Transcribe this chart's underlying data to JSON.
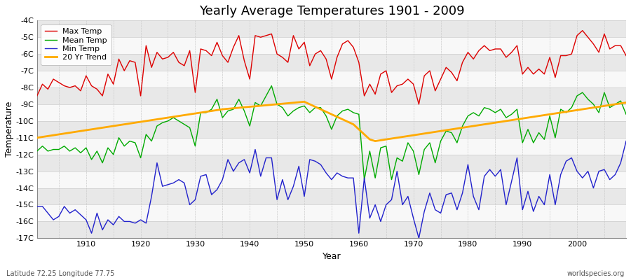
{
  "title": "Yearly Average Temperatures 1901 - 2009",
  "xlabel": "Year",
  "ylabel": "Temperature",
  "bottom_left": "Latitude 72.25 Longitude 77.75",
  "bottom_right": "worldspecies.org",
  "ylim": [
    -17,
    -4
  ],
  "ytick_vals": [
    -17,
    -16,
    -15,
    -14,
    -13,
    -12,
    -11,
    -10,
    -9,
    -8,
    -7,
    -6,
    -5,
    -4
  ],
  "ytick_labels": [
    "-17C",
    "-16C",
    "-15C",
    "-14C",
    "-13C",
    "-12C",
    "-11C",
    "-10C",
    "-9C",
    "-8C",
    "-7C",
    "-6C",
    "-5C",
    "-4C"
  ],
  "xlim": [
    1901,
    2009
  ],
  "bg_color": "#ffffff",
  "plot_bg_color": "#f0f0f0",
  "band_color1": "#e8e8e8",
  "band_color2": "#f8f8f8",
  "grid_color": "#cccccc",
  "legend_labels": [
    "Max Temp",
    "Mean Temp",
    "Min Temp",
    "20 Yr Trend"
  ],
  "legend_colors": [
    "#dd0000",
    "#00aa00",
    "#2222cc",
    "#ffaa00"
  ],
  "years": [
    1901,
    1902,
    1903,
    1904,
    1905,
    1906,
    1907,
    1908,
    1909,
    1910,
    1911,
    1912,
    1913,
    1914,
    1915,
    1916,
    1917,
    1918,
    1919,
    1920,
    1921,
    1922,
    1923,
    1924,
    1925,
    1926,
    1927,
    1928,
    1929,
    1930,
    1931,
    1932,
    1933,
    1934,
    1935,
    1936,
    1937,
    1938,
    1939,
    1940,
    1941,
    1942,
    1943,
    1944,
    1945,
    1946,
    1947,
    1948,
    1949,
    1950,
    1951,
    1952,
    1953,
    1954,
    1955,
    1956,
    1957,
    1958,
    1959,
    1960,
    1961,
    1962,
    1963,
    1964,
    1965,
    1966,
    1967,
    1968,
    1969,
    1970,
    1971,
    1972,
    1973,
    1974,
    1975,
    1976,
    1977,
    1978,
    1979,
    1980,
    1981,
    1982,
    1983,
    1984,
    1985,
    1986,
    1987,
    1988,
    1989,
    1990,
    1991,
    1992,
    1993,
    1994,
    1995,
    1996,
    1997,
    1998,
    1999,
    2000,
    2001,
    2002,
    2003,
    2004,
    2005,
    2006,
    2007,
    2008,
    2009
  ],
  "max_temp": [
    -8.5,
    -7.8,
    -8.1,
    -7.5,
    -7.7,
    -7.9,
    -8.0,
    -7.9,
    -8.2,
    -7.3,
    -7.9,
    -8.1,
    -8.5,
    -7.2,
    -7.8,
    -6.3,
    -7.0,
    -6.4,
    -6.5,
    -8.5,
    -5.5,
    -6.8,
    -5.9,
    -6.3,
    -6.2,
    -5.9,
    -6.5,
    -6.7,
    -5.8,
    -8.3,
    -5.7,
    -5.8,
    -6.1,
    -5.3,
    -6.1,
    -6.5,
    -5.6,
    -4.9,
    -6.4,
    -7.5,
    -4.9,
    -5.0,
    -4.9,
    -4.8,
    -6.0,
    -6.2,
    -6.5,
    -4.9,
    -5.7,
    -5.3,
    -6.7,
    -6.0,
    -5.8,
    -6.3,
    -7.5,
    -6.2,
    -5.4,
    -5.2,
    -5.6,
    -6.5,
    -8.5,
    -7.8,
    -8.4,
    -7.2,
    -7.0,
    -8.3,
    -7.9,
    -7.8,
    -7.5,
    -7.8,
    -9.0,
    -7.3,
    -7.0,
    -8.2,
    -7.5,
    -6.8,
    -7.1,
    -7.6,
    -6.5,
    -5.9,
    -6.3,
    -5.8,
    -5.5,
    -5.8,
    -5.7,
    -5.7,
    -6.2,
    -5.9,
    -5.5,
    -7.2,
    -6.8,
    -7.2,
    -6.9,
    -7.2,
    -6.2,
    -7.4,
    -6.1,
    -6.1,
    -6.0,
    -4.9,
    -4.6,
    -5.0,
    -5.4,
    -5.9,
    -4.8,
    -5.7,
    -5.5,
    -5.5,
    -6.1
  ],
  "mean_temp": [
    -11.8,
    -11.5,
    -11.8,
    -11.7,
    -11.7,
    -11.5,
    -11.8,
    -11.6,
    -11.9,
    -11.6,
    -12.3,
    -11.8,
    -12.5,
    -11.6,
    -12.0,
    -11.0,
    -11.5,
    -11.2,
    -11.3,
    -12.2,
    -10.8,
    -11.2,
    -10.3,
    -10.1,
    -10.0,
    -9.8,
    -10.0,
    -10.2,
    -10.4,
    -11.5,
    -9.5,
    -9.5,
    -9.3,
    -8.7,
    -9.8,
    -9.4,
    -9.3,
    -8.7,
    -9.4,
    -10.3,
    -8.9,
    -9.1,
    -8.5,
    -7.9,
    -9.0,
    -9.2,
    -9.7,
    -9.4,
    -9.2,
    -9.1,
    -9.5,
    -9.2,
    -9.2,
    -9.7,
    -10.5,
    -9.7,
    -9.4,
    -9.3,
    -9.5,
    -9.6,
    -13.5,
    -11.8,
    -13.4,
    -11.6,
    -11.5,
    -13.5,
    -12.2,
    -12.4,
    -11.3,
    -11.8,
    -13.2,
    -11.7,
    -11.3,
    -12.5,
    -11.2,
    -10.6,
    -10.7,
    -11.3,
    -10.3,
    -9.7,
    -9.5,
    -9.7,
    -9.2,
    -9.3,
    -9.5,
    -9.3,
    -9.8,
    -9.6,
    -9.3,
    -11.3,
    -10.5,
    -11.3,
    -10.7,
    -11.1,
    -9.7,
    -11.0,
    -9.3,
    -9.5,
    -9.2,
    -8.5,
    -8.3,
    -8.7,
    -9.0,
    -9.5,
    -8.3,
    -9.2,
    -9.0,
    -8.8,
    -9.6
  ],
  "min_temp": [
    -15.1,
    -15.1,
    -15.5,
    -15.9,
    -15.7,
    -15.1,
    -15.5,
    -15.3,
    -15.6,
    -15.9,
    -16.7,
    -15.5,
    -16.5,
    -15.9,
    -16.2,
    -15.7,
    -16.0,
    -16.0,
    -16.1,
    -15.9,
    -16.1,
    -14.5,
    -12.5,
    -13.9,
    -13.8,
    -13.7,
    -13.5,
    -13.7,
    -15.0,
    -14.7,
    -13.3,
    -13.2,
    -14.4,
    -14.1,
    -13.5,
    -12.3,
    -13.0,
    -12.5,
    -12.3,
    -13.1,
    -11.7,
    -13.3,
    -12.2,
    -12.2,
    -14.7,
    -13.5,
    -14.7,
    -13.9,
    -12.7,
    -14.5,
    -12.3,
    -12.4,
    -12.6,
    -13.1,
    -13.5,
    -13.1,
    -13.3,
    -13.4,
    -13.4,
    -16.7,
    -13.4,
    -15.8,
    -15.0,
    -16.0,
    -15.0,
    -14.7,
    -13.0,
    -15.0,
    -14.5,
    -15.8,
    -17.0,
    -15.4,
    -14.3,
    -15.3,
    -15.5,
    -14.4,
    -14.3,
    -15.3,
    -14.3,
    -12.6,
    -14.5,
    -15.3,
    -13.3,
    -12.9,
    -13.3,
    -12.9,
    -15.0,
    -13.6,
    -12.2,
    -15.3,
    -14.2,
    -15.4,
    -14.5,
    -15.0,
    -13.2,
    -15.0,
    -13.2,
    -12.4,
    -12.2,
    -13.0,
    -13.4,
    -13.0,
    -14.0,
    -13.0,
    -12.9,
    -13.5,
    -13.2,
    -12.5,
    -11.2
  ],
  "trend": [
    -11.0,
    -10.95,
    -10.9,
    -10.85,
    -10.8,
    -10.75,
    -10.7,
    -10.65,
    -10.6,
    -10.55,
    -10.5,
    -10.45,
    -10.4,
    -10.35,
    -10.3,
    -10.25,
    -10.2,
    -10.15,
    -10.1,
    -10.05,
    -10.0,
    -9.95,
    -9.9,
    -9.85,
    -9.8,
    -9.75,
    -9.7,
    -9.65,
    -9.6,
    -9.55,
    -9.5,
    -9.45,
    -9.4,
    -9.35,
    -9.3,
    -9.27,
    -9.24,
    -9.21,
    -9.18,
    -9.15,
    -9.12,
    -9.09,
    -9.06,
    -9.03,
    -9.0,
    -8.97,
    -8.94,
    -8.91,
    -8.88,
    -8.85,
    -9.0,
    -9.15,
    -9.3,
    -9.45,
    -9.6,
    -9.75,
    -9.9,
    -10.05,
    -10.2,
    -10.5,
    -10.8,
    -11.1,
    -11.2,
    -11.15,
    -11.1,
    -11.05,
    -11.0,
    -10.95,
    -10.9,
    -10.85,
    -10.8,
    -10.75,
    -10.7,
    -10.65,
    -10.6,
    -10.55,
    -10.5,
    -10.45,
    -10.4,
    -10.35,
    -10.3,
    -10.25,
    -10.2,
    -10.15,
    -10.1,
    -10.05,
    -10.0,
    -9.95,
    -9.9,
    -9.85,
    -9.8,
    -9.75,
    -9.7,
    -9.65,
    -9.6,
    -9.55,
    -9.5,
    -9.45,
    -9.4,
    -9.35,
    -9.3,
    -9.25,
    -9.2,
    -9.15,
    -9.1,
    -9.05,
    -9.0,
    -8.95,
    -8.9
  ]
}
